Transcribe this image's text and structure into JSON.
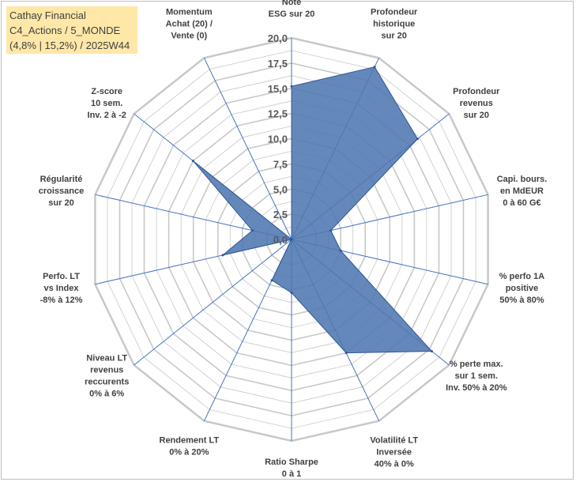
{
  "title": {
    "line1": "Cathay Financial",
    "line2": "C4_Actions / 5_MONDE",
    "line3": "(4,8% | 15,2%) / 2025W44"
  },
  "chart_data": {
    "type": "radar",
    "rmin": 0,
    "rmax": 20,
    "ticks": [
      "0,0",
      "2,5",
      "5,0",
      "7,5",
      "10,0",
      "12,5",
      "15,0",
      "17,5",
      "20,0"
    ],
    "tick_values": [
      0,
      2.5,
      5,
      7.5,
      10,
      12.5,
      15,
      17.5,
      20
    ],
    "axes": [
      {
        "label": [
          "Note",
          "ESG sur 20"
        ],
        "value": 15.2
      },
      {
        "label": [
          "Profondeur",
          "historique",
          "sur 20"
        ],
        "value": 19.0
      },
      {
        "label": [
          "Profondeur",
          "revenus",
          "sur 20"
        ],
        "value": 16.0
      },
      {
        "label": [
          "Capi. bours.",
          "en MdEUR",
          "0 à 60 G€"
        ],
        "value": 4.0
      },
      {
        "label": [
          "% perfo 1A",
          "positive",
          "50% à 80%"
        ],
        "value": 5.0
      },
      {
        "label": [
          "% perte max.",
          "sur 1 sem.",
          "Inv. 50% à 20%"
        ],
        "value": 17.8
      },
      {
        "label": [
          "Volatilité LT",
          "Inversée",
          "40% à 0%"
        ],
        "value": 12.5
      },
      {
        "label": [
          "Ratio Sharpe",
          "0 à 1"
        ],
        "value": 5.3
      },
      {
        "label": [
          "Rendement LT",
          "0% à 20%"
        ],
        "value": 4.5
      },
      {
        "label": [
          "Niveau LT",
          "revenus",
          "reccurents",
          "0% à 6%"
        ],
        "value": 0.0
      },
      {
        "label": [
          "Perfo. LT",
          "vs Index",
          "-8% à 12%"
        ],
        "value": 7.0
      },
      {
        "label": [
          "Régularité",
          "croissance",
          "sur 20"
        ],
        "value": 4.0
      },
      {
        "label": [
          "Z-score",
          "10 sem.",
          "Inv. 2 à -2"
        ],
        "value": 12.5
      },
      {
        "label": [
          "Momentum",
          "Achat (20) /",
          "Vente (0)"
        ],
        "value": 0.0
      }
    ],
    "colors": {
      "fill": "#4f77b0",
      "stroke": "#2f5597",
      "grid": "#c8c8c8",
      "spoke": "#4472c4"
    }
  }
}
